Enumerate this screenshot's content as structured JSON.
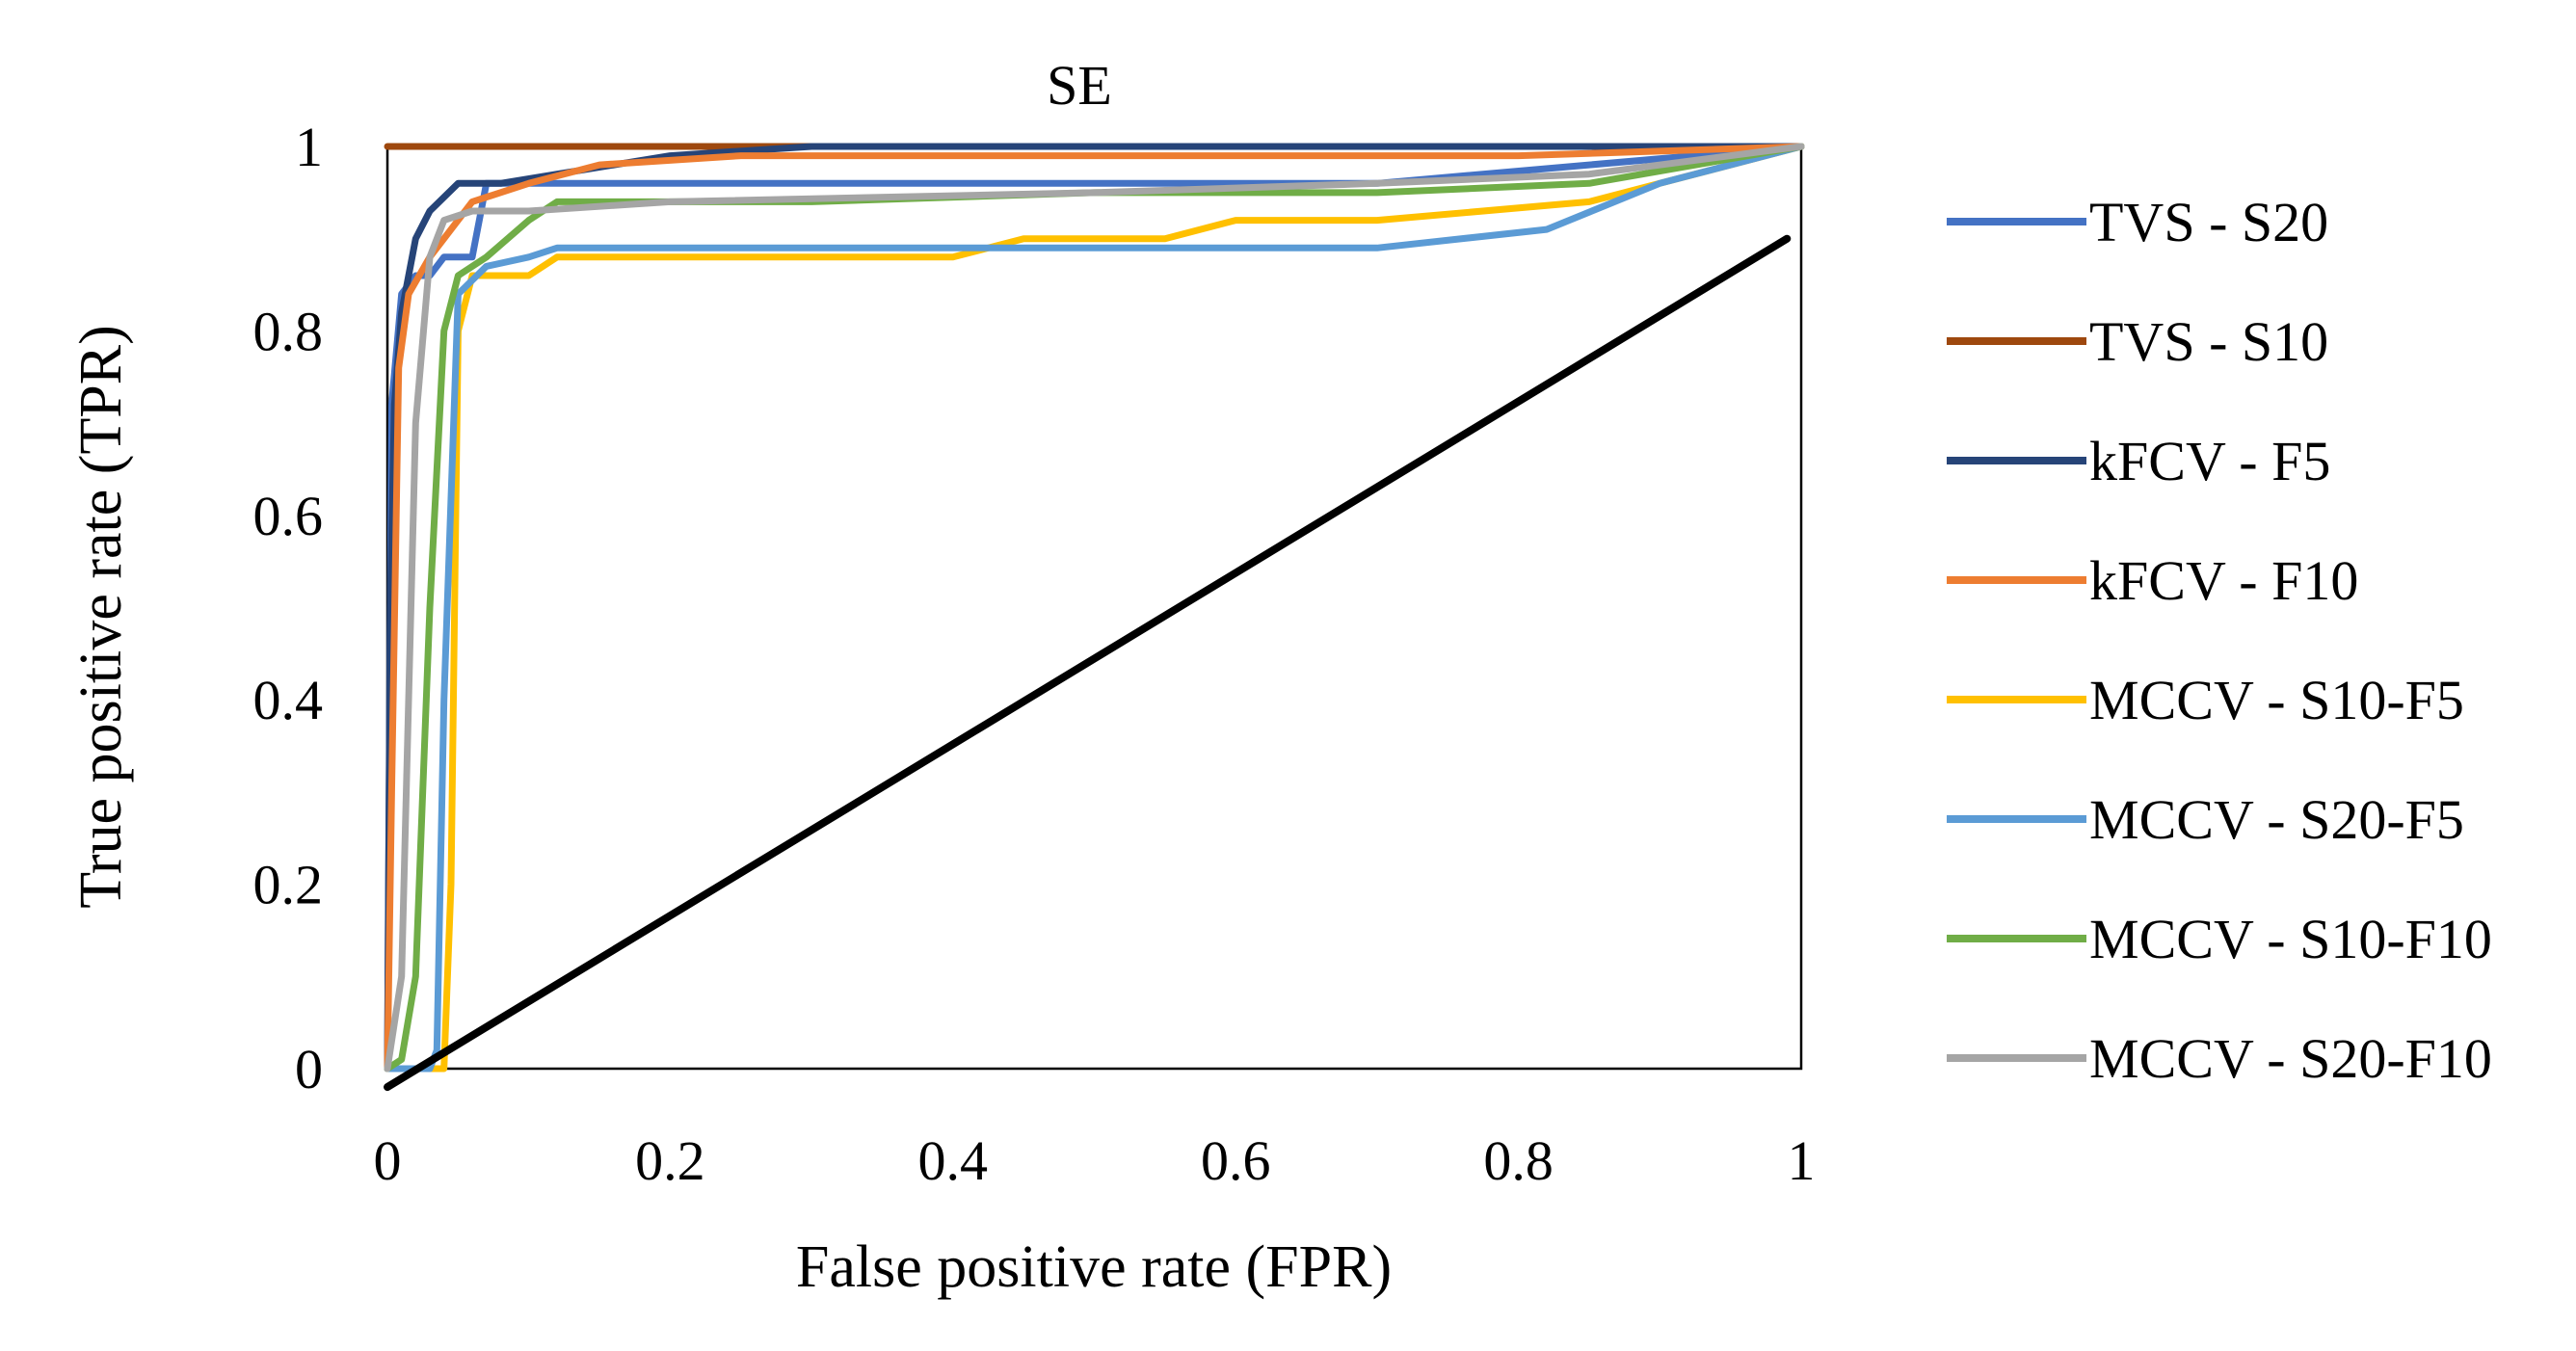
{
  "chart_data": {
    "type": "line",
    "title": "SE",
    "xlabel": "False positive rate (FPR)",
    "ylabel": "True positive rate (TPR)",
    "xlim": [
      0,
      1
    ],
    "ylim": [
      0,
      1
    ],
    "x_ticks": [
      "0",
      "0.2",
      "0.4",
      "0.6",
      "0.8",
      "1"
    ],
    "y_ticks": [
      "0",
      "0.2",
      "0.4",
      "0.6",
      "0.8",
      "1"
    ],
    "legend_position": "right",
    "series": [
      {
        "name": "TVS - S20",
        "color": "#4472C4",
        "points": [
          [
            0.0,
            0.0
          ],
          [
            0.003,
            0.72
          ],
          [
            0.01,
            0.84
          ],
          [
            0.02,
            0.86
          ],
          [
            0.03,
            0.86
          ],
          [
            0.04,
            0.88
          ],
          [
            0.05,
            0.88
          ],
          [
            0.06,
            0.88
          ],
          [
            0.07,
            0.96
          ],
          [
            0.12,
            0.96
          ],
          [
            0.3,
            0.96
          ],
          [
            0.6,
            0.96
          ],
          [
            0.7,
            0.96
          ],
          [
            0.85,
            0.98
          ],
          [
            1.0,
            1.0
          ]
        ]
      },
      {
        "name": "TVS - S10",
        "color": "#9E480E",
        "points": [
          [
            0.0,
            1.0
          ],
          [
            1.0,
            1.0
          ]
        ]
      },
      {
        "name": "kFCV - F5",
        "color": "#264478",
        "points": [
          [
            0.0,
            0.0
          ],
          [
            0.002,
            0.5
          ],
          [
            0.005,
            0.72
          ],
          [
            0.01,
            0.82
          ],
          [
            0.02,
            0.9
          ],
          [
            0.03,
            0.93
          ],
          [
            0.05,
            0.96
          ],
          [
            0.08,
            0.96
          ],
          [
            0.12,
            0.97
          ],
          [
            0.2,
            0.99
          ],
          [
            0.3,
            1.0
          ],
          [
            1.0,
            1.0
          ]
        ]
      },
      {
        "name": "kFCV - F10",
        "color": "#ED7D31",
        "points": [
          [
            0.0,
            0.0
          ],
          [
            0.003,
            0.3
          ],
          [
            0.008,
            0.76
          ],
          [
            0.015,
            0.84
          ],
          [
            0.03,
            0.88
          ],
          [
            0.06,
            0.94
          ],
          [
            0.1,
            0.96
          ],
          [
            0.15,
            0.98
          ],
          [
            0.25,
            0.99
          ],
          [
            0.5,
            0.99
          ],
          [
            0.8,
            0.99
          ],
          [
            1.0,
            1.0
          ]
        ]
      },
      {
        "name": "MCCV - S10-F5",
        "color": "#FFC000",
        "points": [
          [
            0.0,
            0.0
          ],
          [
            0.04,
            0.0
          ],
          [
            0.045,
            0.2
          ],
          [
            0.05,
            0.8
          ],
          [
            0.06,
            0.86
          ],
          [
            0.1,
            0.86
          ],
          [
            0.12,
            0.88
          ],
          [
            0.4,
            0.88
          ],
          [
            0.45,
            0.9
          ],
          [
            0.55,
            0.9
          ],
          [
            0.6,
            0.92
          ],
          [
            0.7,
            0.92
          ],
          [
            0.85,
            0.94
          ],
          [
            0.9,
            0.96
          ],
          [
            1.0,
            1.0
          ]
        ]
      },
      {
        "name": "MCCV - S20-F5",
        "color": "#5B9BD5",
        "points": [
          [
            0.0,
            0.0
          ],
          [
            0.03,
            0.0
          ],
          [
            0.035,
            0.02
          ],
          [
            0.04,
            0.4
          ],
          [
            0.05,
            0.84
          ],
          [
            0.07,
            0.87
          ],
          [
            0.1,
            0.88
          ],
          [
            0.12,
            0.89
          ],
          [
            0.3,
            0.89
          ],
          [
            0.5,
            0.89
          ],
          [
            0.7,
            0.89
          ],
          [
            0.82,
            0.91
          ],
          [
            0.9,
            0.96
          ],
          [
            1.0,
            1.0
          ]
        ]
      },
      {
        "name": "MCCV - S10-F10",
        "color": "#70AD47",
        "points": [
          [
            0.0,
            0.0
          ],
          [
            0.01,
            0.01
          ],
          [
            0.02,
            0.1
          ],
          [
            0.03,
            0.5
          ],
          [
            0.04,
            0.8
          ],
          [
            0.05,
            0.86
          ],
          [
            0.07,
            0.88
          ],
          [
            0.1,
            0.92
          ],
          [
            0.12,
            0.94
          ],
          [
            0.3,
            0.94
          ],
          [
            0.5,
            0.95
          ],
          [
            0.7,
            0.95
          ],
          [
            0.85,
            0.96
          ],
          [
            1.0,
            1.0
          ]
        ]
      },
      {
        "name": "MCCV - S20-F10",
        "color": "#A5A5A5",
        "points": [
          [
            0.0,
            0.0
          ],
          [
            0.01,
            0.1
          ],
          [
            0.02,
            0.7
          ],
          [
            0.03,
            0.88
          ],
          [
            0.04,
            0.92
          ],
          [
            0.06,
            0.93
          ],
          [
            0.1,
            0.93
          ],
          [
            0.2,
            0.94
          ],
          [
            0.5,
            0.95
          ],
          [
            0.7,
            0.96
          ],
          [
            0.85,
            0.97
          ],
          [
            1.0,
            1.0
          ]
        ]
      },
      {
        "name": "",
        "color": "#000000",
        "points": [
          [
            0.0,
            -0.02
          ],
          [
            0.99,
            0.9
          ]
        ]
      }
    ]
  }
}
